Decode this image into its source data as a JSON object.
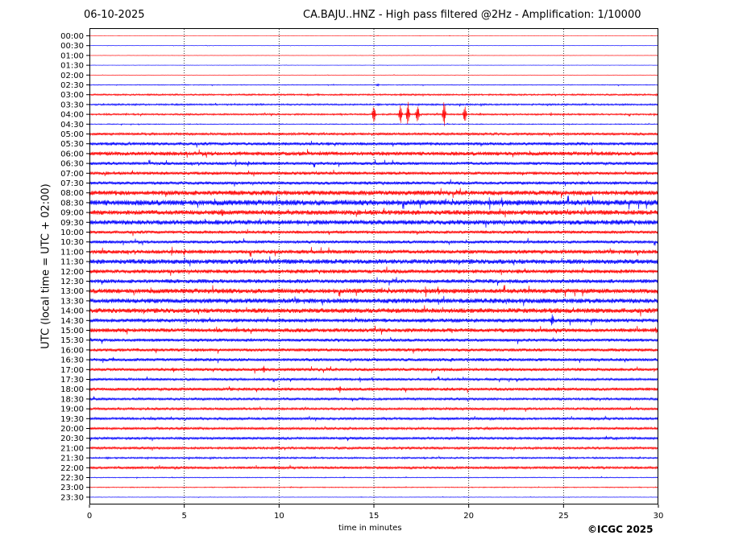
{
  "header": {
    "date": "06-10-2025",
    "title": "CA.BAJU..HNZ - High pass filtered @2Hz - Amplification: 1/10000"
  },
  "footer": {
    "credit": "©ICGC 2025"
  },
  "chart_data": {
    "type": "line",
    "title": "CA.BAJU..HNZ - High pass filtered @2Hz - Amplification: 1/10000",
    "xlabel": "time in minutes",
    "ylabel": "UTC (local time = UTC + 02:00)",
    "xlim": [
      0,
      30
    ],
    "x_ticks": [
      0,
      5,
      10,
      15,
      20,
      25,
      30
    ],
    "grid": "vertical dotted at every 5 minutes",
    "row_labels": [
      "00:00",
      "00:30",
      "01:00",
      "01:30",
      "02:00",
      "02:30",
      "03:00",
      "03:30",
      "04:00",
      "04:30",
      "05:00",
      "05:30",
      "06:00",
      "06:30",
      "07:00",
      "07:30",
      "08:00",
      "08:30",
      "09:00",
      "09:30",
      "10:00",
      "10:30",
      "11:00",
      "11:30",
      "12:00",
      "12:30",
      "13:00",
      "13:30",
      "14:00",
      "14:30",
      "15:00",
      "15:30",
      "16:00",
      "16:30",
      "17:00",
      "17:30",
      "18:00",
      "18:30",
      "19:00",
      "19:30",
      "20:00",
      "20:30",
      "21:00",
      "21:30",
      "22:00",
      "22:30",
      "23:00",
      "23:30"
    ],
    "row_colors": [
      "#ff0000",
      "#0000ff"
    ],
    "noise_levels": [
      0.2,
      0.2,
      0.2,
      0.2,
      0.2,
      0.5,
      1,
      1,
      1,
      0.5,
      1.5,
      2,
      2.5,
      2,
      2,
      2,
      3,
      3.5,
      3,
      3,
      2,
      2,
      2.5,
      3,
      2.5,
      2.5,
      3,
      3,
      3,
      2.5,
      2.5,
      2,
      2,
      2,
      2,
      1.5,
      2,
      1.5,
      1.5,
      1.5,
      1.5,
      1.5,
      1.5,
      1,
      1.5,
      0.5,
      0.5,
      0.3
    ],
    "events": [
      {
        "row": 8,
        "minute": 15.0,
        "amplitude": 14
      },
      {
        "row": 8,
        "minute": 16.4,
        "amplitude": 14
      },
      {
        "row": 8,
        "minute": 16.8,
        "amplitude": 17
      },
      {
        "row": 8,
        "minute": 17.3,
        "amplitude": 15
      },
      {
        "row": 8,
        "minute": 18.7,
        "amplitude": 17
      },
      {
        "row": 8,
        "minute": 19.8,
        "amplitude": 13
      },
      {
        "row": 8,
        "minute": 20.6,
        "amplitude": 2
      },
      {
        "row": 18,
        "minute": 7.0,
        "amplitude": 6
      },
      {
        "row": 29,
        "minute": 24.4,
        "amplitude": 9
      },
      {
        "row": 34,
        "minute": 9.2,
        "amplitude": 5
      },
      {
        "row": 36,
        "minute": 13.2,
        "amplitude": 5
      },
      {
        "row": 5,
        "minute": 15.2,
        "amplitude": 2
      }
    ]
  }
}
